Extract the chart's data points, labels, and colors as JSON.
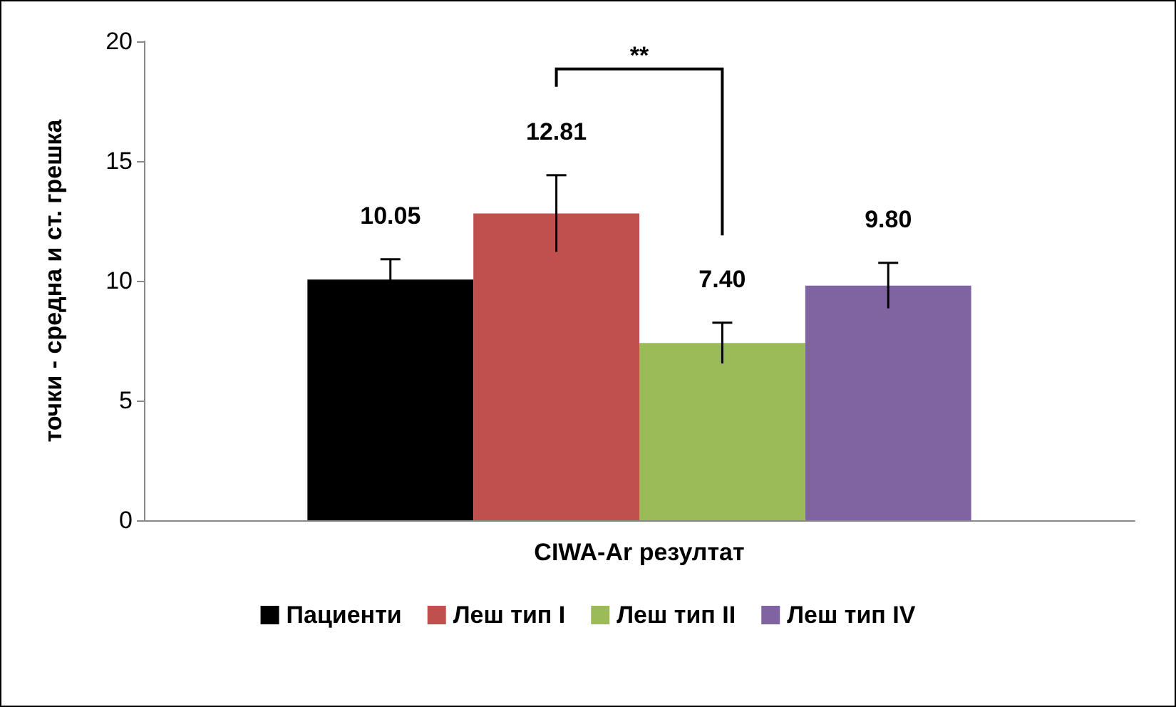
{
  "chart_data": {
    "type": "bar",
    "ylabel": "точки - средна и ст. грешка",
    "categories": [
      "CIWA-Ar резултат"
    ],
    "series": [
      {
        "name": "Пациенти",
        "color": "#000000",
        "values": [
          10.05
        ],
        "errors": [
          0.85
        ],
        "value_labels": [
          "10.05"
        ]
      },
      {
        "name": "Леш тип I",
        "color": "#c0504d",
        "values": [
          12.81
        ],
        "errors": [
          1.6
        ],
        "value_labels": [
          "12.81"
        ]
      },
      {
        "name": "Леш тип II",
        "color": "#9bbb59",
        "values": [
          7.4
        ],
        "errors": [
          0.85
        ],
        "value_labels": [
          "7.40"
        ]
      },
      {
        "name": "Леш тип IV",
        "color": "#8064a2",
        "values": [
          9.8
        ],
        "errors": [
          0.95
        ],
        "value_labels": [
          "9.80"
        ]
      }
    ],
    "ylim": [
      0,
      20
    ],
    "yticks": [
      0,
      5,
      10,
      15,
      20
    ],
    "grid": false,
    "legend": "bottom",
    "annotations": [
      "**"
    ]
  }
}
